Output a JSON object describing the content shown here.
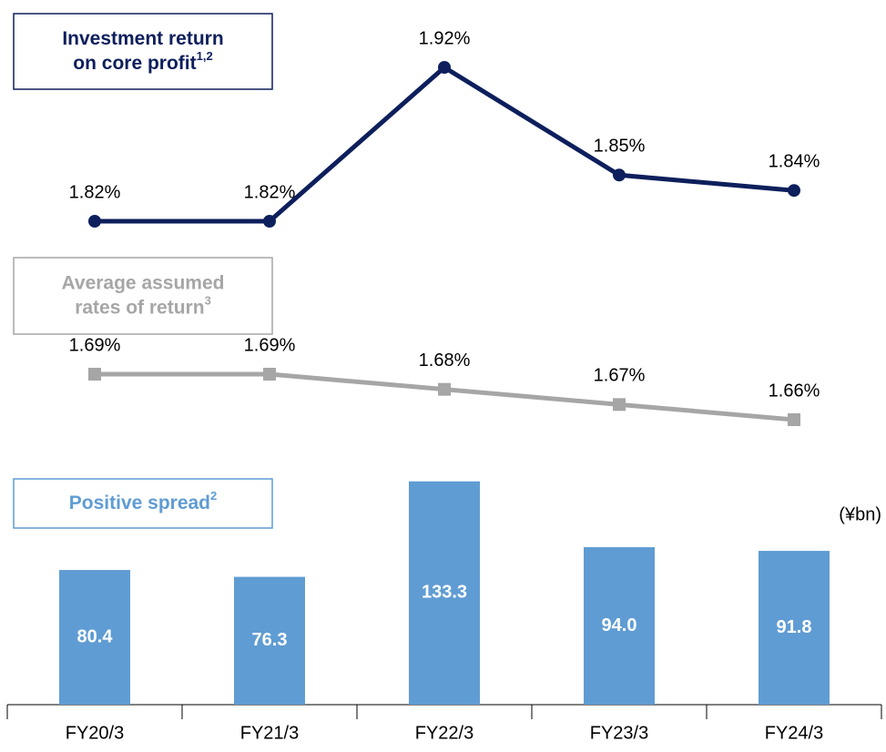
{
  "chart_data": [
    {
      "type": "line",
      "title_lines": [
        "Investment return",
        "on core profit"
      ],
      "title_note": "1,2",
      "values": [
        1.82,
        1.82,
        1.92,
        1.85,
        1.84
      ],
      "value_labels": [
        "1.82%",
        "1.82%",
        "1.92%",
        "1.85%",
        "1.84%"
      ],
      "color": "#0d1f5c",
      "marker": "circle"
    },
    {
      "type": "line",
      "title_lines": [
        "Average assumed",
        "rates of return"
      ],
      "title_note": "3",
      "values": [
        1.69,
        1.69,
        1.68,
        1.67,
        1.66
      ],
      "value_labels": [
        "1.69%",
        "1.69%",
        "1.68%",
        "1.67%",
        "1.66%"
      ],
      "color": "#a6a6a6",
      "marker": "square"
    },
    {
      "type": "bar",
      "title_lines": [
        "Positive spread"
      ],
      "title_note": "2",
      "unit": "(¥bn)",
      "categories": [
        "FY20/3",
        "FY21/3",
        "FY22/3",
        "FY23/3",
        "FY24/3"
      ],
      "values": [
        80.4,
        76.3,
        133.3,
        94.0,
        91.8
      ],
      "value_labels": [
        "80.4",
        "76.3",
        "133.3",
        "94.0",
        "91.8"
      ],
      "color": "#5f9cd3"
    }
  ]
}
